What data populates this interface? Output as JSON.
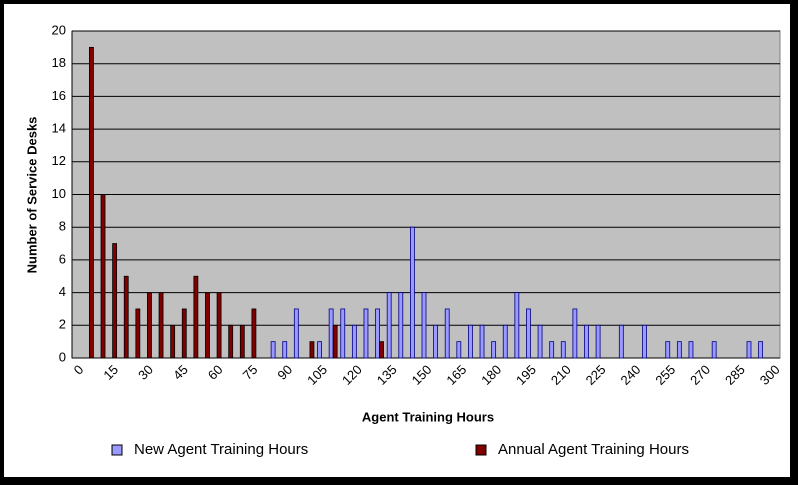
{
  "chart_data": {
    "type": "bar",
    "x_label": "Agent Training Hours",
    "y_label": "Number of Service Desks",
    "categories": [
      "0",
      null,
      null,
      "15",
      null,
      null,
      "30",
      null,
      null,
      "45",
      null,
      null,
      "60",
      null,
      null,
      "75",
      null,
      null,
      "90",
      null,
      null,
      "105",
      null,
      null,
      "120",
      null,
      null,
      "135",
      null,
      null,
      "150",
      null,
      null,
      "165",
      null,
      null,
      "180",
      null,
      null,
      "195",
      null,
      null,
      "210",
      null,
      null,
      "225",
      null,
      null,
      "240",
      null,
      null,
      "255",
      null,
      null,
      "270",
      null,
      null,
      "285",
      null,
      null,
      "300"
    ],
    "series": [
      {
        "name": "New Agent Training Hours",
        "color": "#9999ff",
        "values": [
          0,
          0,
          0,
          0,
          0,
          0,
          0,
          0,
          0,
          0,
          0,
          0,
          0,
          0,
          0,
          0,
          0,
          1,
          1,
          3,
          0,
          1,
          3,
          3,
          2,
          3,
          3,
          4,
          4,
          8,
          4,
          2,
          3,
          1,
          2,
          2,
          1,
          2,
          4,
          3,
          2,
          1,
          1,
          3,
          2,
          2,
          0,
          2,
          0,
          2,
          0,
          1,
          1,
          1,
          0,
          1,
          0,
          0,
          1,
          1,
          0
        ]
      },
      {
        "name": "Annual Agent Training Hours",
        "color": "#800000",
        "values": [
          0,
          19,
          10,
          7,
          5,
          3,
          4,
          4,
          2,
          3,
          5,
          4,
          4,
          2,
          2,
          3,
          0,
          0,
          0,
          0,
          1,
          0,
          2,
          0,
          0,
          0,
          1,
          0,
          0,
          0,
          0,
          0,
          0,
          0,
          0,
          0,
          0,
          0,
          0,
          0,
          0,
          0,
          0,
          0,
          0,
          0,
          0,
          0,
          0,
          0,
          0,
          0,
          0,
          0,
          0,
          0,
          0,
          0,
          0,
          0,
          0
        ]
      }
    ],
    "ylim": [
      0,
      20
    ],
    "yticks": [
      0,
      2,
      4,
      6,
      8,
      10,
      12,
      14,
      16,
      18,
      20
    ],
    "grid": true
  }
}
